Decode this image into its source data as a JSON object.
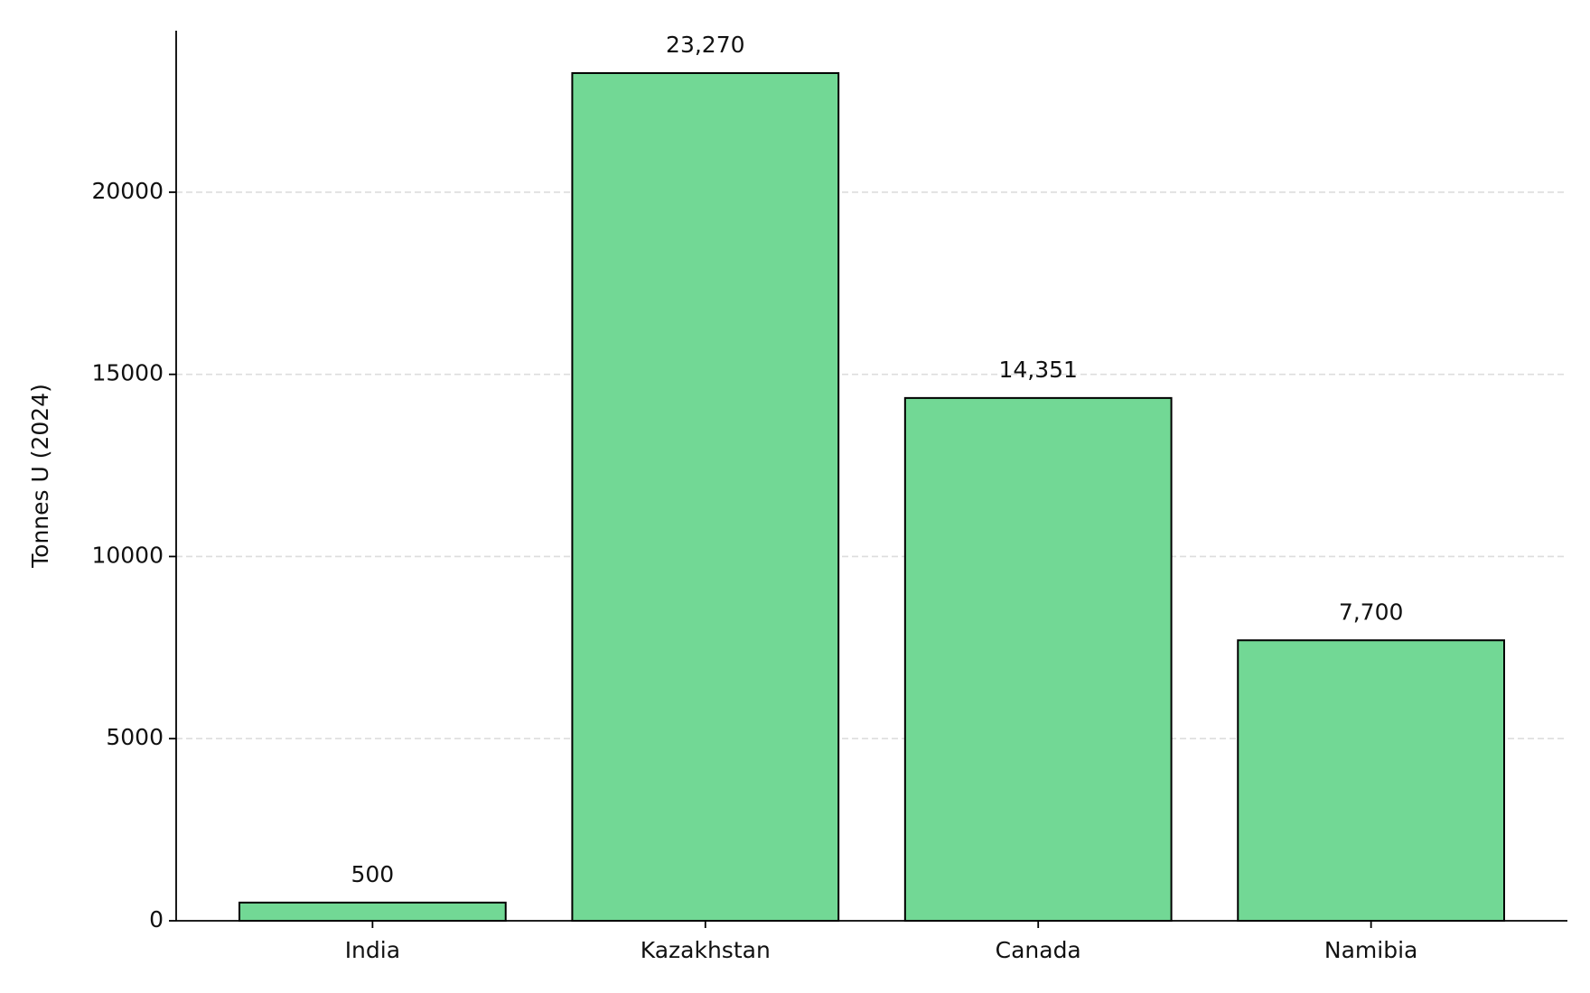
{
  "chart_data": {
    "type": "bar",
    "y_label": "Tonnes U (2024)",
    "categories": [
      "India",
      "Kazakhstan",
      "Canada",
      "Namibia"
    ],
    "values": [
      500,
      23270,
      14351,
      7700
    ],
    "value_labels": [
      "500",
      "23,270",
      "14,351",
      "7,700"
    ],
    "color": "#72d895",
    "ylim": [
      0,
      24433.5
    ],
    "yticks": [
      0,
      5000,
      10000,
      15000,
      20000
    ],
    "grid": true
  }
}
